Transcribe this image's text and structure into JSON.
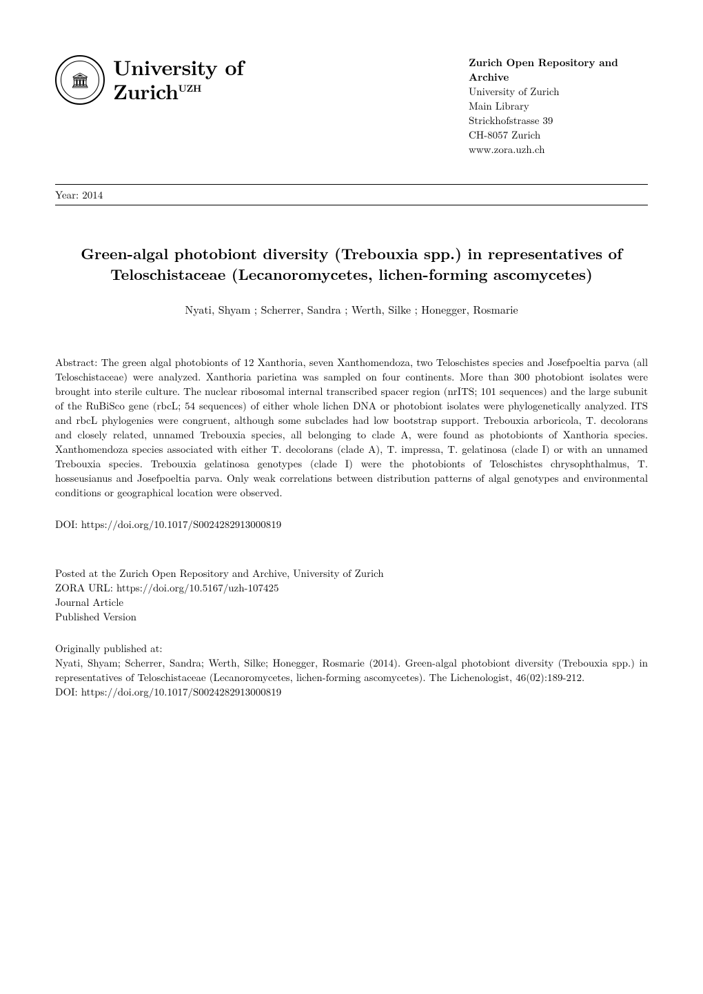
{
  "header": {
    "university_line1": "University of",
    "university_line2": "Zurich",
    "university_sup": "UZH",
    "archive": {
      "title": "Zurich Open Repository and Archive",
      "line2": "University of Zurich",
      "line3": "Main Library",
      "line4": "Strickhofstrasse 39",
      "line5": "CH-8057 Zurich",
      "line6": "www.zora.uzh.ch"
    }
  },
  "year_label": "Year: 2014",
  "title": "Green-algal photobiont diversity (Trebouxia spp.) in representatives of Teloschistaceae (Lecanoromycetes, lichen-forming ascomycetes)",
  "authors": "Nyati, Shyam ; Scherrer, Sandra ; Werth, Silke ; Honegger, Rosmarie",
  "abstract_label": "Abstract: ",
  "abstract": "The green algal photobionts of 12 Xanthoria, seven Xanthomendoza, two Teloschistes species and Josefpoeltia parva (all Teloschistaceae) were analyzed. Xanthoria parietina was sampled on four continents. More than 300 photobiont isolates were brought into sterile culture. The nuclear ribosomal internal transcribed spacer region (nrITS; 101 sequences) and the large subunit of the RuBiSco gene (rbcL; 54 sequences) of either whole lichen DNA or photobiont isolates were phylogenetically analyzed. ITS and rbcL phylogenies were congruent, although some subclades had low bootstrap support. Trebouxia arboricola, T. decolorans and closely related, unnamed Trebouxia species, all belonging to clade A, were found as photobionts of Xanthoria species. Xanthomendoza species associated with either T. decolorans (clade A), T. impressa, T. gelatinosa (clade I) or with an unnamed Trebouxia species. Trebouxia gelatinosa genotypes (clade I) were the photobionts of Teloschistes chrysophthalmus, T. hosseusianus and Josefpoeltia parva. Only weak correlations between distribution patterns of algal genotypes and environmental conditions or geographical location were observed.",
  "doi_label": "DOI: ",
  "doi": "https://doi.org/10.1017/S0024282913000819",
  "posted": {
    "line1": "Posted at the Zurich Open Repository and Archive, University of Zurich",
    "line2_label": "ZORA URL: ",
    "line2_url": "https://doi.org/10.5167/uzh-107425",
    "line3": "Journal Article",
    "line4": "Published Version"
  },
  "original": {
    "heading": "Originally published at:",
    "citation": "Nyati, Shyam; Scherrer, Sandra; Werth, Silke; Honegger, Rosmarie (2014). Green-algal photobiont diversity (Trebouxia spp.) in representatives of Teloschistaceae (Lecanoromycetes, lichen-forming ascomycetes). The Lichenologist, 46(02):189-212.",
    "doi_label": "DOI: ",
    "doi": "https://doi.org/10.1017/S0024282913000819"
  }
}
